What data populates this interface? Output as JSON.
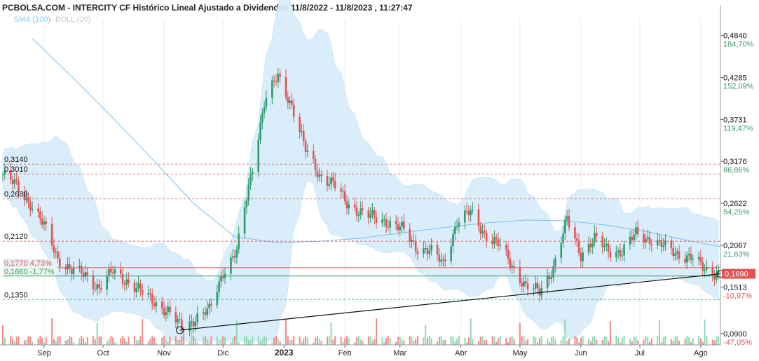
{
  "title": "PCBOLSA.COM - INTERCITY CF Histórico Lineal Ajustado a Dividendos 11/8/2022 - 11/8/2023 , 11:27:47",
  "legend": {
    "sma": "SMA (100)",
    "boll": "BOLL (20)"
  },
  "colors": {
    "up": "#2e9c6a",
    "down": "#e05454",
    "sma": "#7cc0ec",
    "band": "#d7ecfa",
    "vol_up": "#8fd9ae",
    "vol_down": "#f08a8a",
    "ref_red": "#e05454",
    "ref_green": "#3a9a6a"
  },
  "chart_data": {
    "type": "candlestick",
    "x_start": "2022-08-11",
    "x_end": "2023-08-11",
    "months": [
      {
        "label": "Sep",
        "date": "2022-09-01"
      },
      {
        "label": "Oct",
        "date": "2022-10-01"
      },
      {
        "label": "Nov",
        "date": "2022-11-01"
      },
      {
        "label": "Dic",
        "date": "2022-12-01"
      },
      {
        "label": "2023",
        "date": "2023-01-01"
      },
      {
        "label": "Feb",
        "date": "2023-02-01"
      },
      {
        "label": "Mar",
        "date": "2023-03-01"
      },
      {
        "label": "Abr",
        "date": "2023-04-01"
      },
      {
        "label": "May",
        "date": "2023-05-01"
      },
      {
        "label": "Jun",
        "date": "2023-06-01"
      },
      {
        "label": "Jul",
        "date": "2023-07-01"
      },
      {
        "label": "Ago",
        "date": "2023-08-01"
      }
    ],
    "ylim": [
      0.075,
      0.505
    ],
    "right_ticks": [
      {
        "price": "0,4840",
        "pct": "184,70%",
        "v": 0.484,
        "pos": true
      },
      {
        "price": "0,4285",
        "pct": "152,09%",
        "v": 0.4285,
        "pos": true
      },
      {
        "price": "0,3731",
        "pct": "119,47%",
        "v": 0.3731,
        "pos": true
      },
      {
        "price": "0,3176",
        "pct": "86,86%",
        "v": 0.3176,
        "pos": true
      },
      {
        "price": "0,2622",
        "pct": "54,25%",
        "v": 0.2622,
        "pos": true
      },
      {
        "price": "0,2067",
        "pct": "21,63%",
        "v": 0.2067,
        "pos": true
      },
      {
        "price": "0,1513",
        "pct": "-10,97%",
        "v": 0.1513,
        "pos": false
      },
      {
        "price": "0,0900",
        "pct": "-47,05%",
        "v": 0.09,
        "pos": false
      }
    ],
    "last_price": {
      "label": "0,1690",
      "v": 0.169
    },
    "ref_lines": [
      {
        "label": "0,3140",
        "v": 0.314,
        "style": "red-dash"
      },
      {
        "label": "0,3010",
        "v": 0.301,
        "style": "red-dash"
      },
      {
        "label": "0,2680",
        "v": 0.268,
        "style": "red-dash"
      },
      {
        "label": "0,2120",
        "v": 0.212,
        "style": "red-dash"
      },
      {
        "label": "0,1770  4,73%",
        "v": 0.177,
        "style": "red-solid"
      },
      {
        "label": "0,1660  -1,77%",
        "v": 0.166,
        "style": "green-solid"
      },
      {
        "label": "0,1350",
        "v": 0.135,
        "style": "green-dash"
      }
    ],
    "trendline": [
      {
        "date": "2022-11-09",
        "v": 0.0945
      },
      {
        "date": "2023-08-11",
        "v": 0.169
      }
    ],
    "series": [
      {
        "date": "2022-08-11",
        "close": 0.3
      },
      {
        "date": "2022-08-18",
        "close": 0.285
      },
      {
        "date": "2022-08-25",
        "close": 0.262
      },
      {
        "date": "2022-09-01",
        "close": 0.232
      },
      {
        "date": "2022-09-08",
        "close": 0.19
      },
      {
        "date": "2022-09-15",
        "close": 0.172
      },
      {
        "date": "2022-09-22",
        "close": 0.168
      },
      {
        "date": "2022-09-29",
        "close": 0.15
      },
      {
        "date": "2022-10-06",
        "close": 0.172
      },
      {
        "date": "2022-10-13",
        "close": 0.16
      },
      {
        "date": "2022-10-20",
        "close": 0.145
      },
      {
        "date": "2022-10-27",
        "close": 0.133
      },
      {
        "date": "2022-11-03",
        "close": 0.118
      },
      {
        "date": "2022-11-10",
        "close": 0.098
      },
      {
        "date": "2022-11-17",
        "close": 0.11
      },
      {
        "date": "2022-11-24",
        "close": 0.12
      },
      {
        "date": "2022-12-01",
        "close": 0.172
      },
      {
        "date": "2022-12-08",
        "close": 0.198
      },
      {
        "date": "2022-12-15",
        "close": 0.298
      },
      {
        "date": "2022-12-22",
        "close": 0.395
      },
      {
        "date": "2022-12-29",
        "close": 0.43
      },
      {
        "date": "2023-01-05",
        "close": 0.392
      },
      {
        "date": "2023-01-12",
        "close": 0.332
      },
      {
        "date": "2023-01-19",
        "close": 0.3
      },
      {
        "date": "2023-01-26",
        "close": 0.288
      },
      {
        "date": "2023-02-02",
        "close": 0.262
      },
      {
        "date": "2023-02-09",
        "close": 0.251
      },
      {
        "date": "2023-02-16",
        "close": 0.242
      },
      {
        "date": "2023-02-23",
        "close": 0.238
      },
      {
        "date": "2023-03-02",
        "close": 0.228
      },
      {
        "date": "2023-03-09",
        "close": 0.205
      },
      {
        "date": "2023-03-16",
        "close": 0.2
      },
      {
        "date": "2023-03-23",
        "close": 0.182
      },
      {
        "date": "2023-03-30",
        "close": 0.238
      },
      {
        "date": "2023-04-06",
        "close": 0.25
      },
      {
        "date": "2023-04-13",
        "close": 0.222
      },
      {
        "date": "2023-04-20",
        "close": 0.208
      },
      {
        "date": "2023-04-27",
        "close": 0.18
      },
      {
        "date": "2023-05-04",
        "close": 0.152
      },
      {
        "date": "2023-05-11",
        "close": 0.145
      },
      {
        "date": "2023-05-18",
        "close": 0.178
      },
      {
        "date": "2023-05-25",
        "close": 0.24
      },
      {
        "date": "2023-06-01",
        "close": 0.195
      },
      {
        "date": "2023-06-08",
        "close": 0.215
      },
      {
        "date": "2023-06-15",
        "close": 0.2
      },
      {
        "date": "2023-06-22",
        "close": 0.198
      },
      {
        "date": "2023-06-29",
        "close": 0.222
      },
      {
        "date": "2023-07-06",
        "close": 0.215
      },
      {
        "date": "2023-07-13",
        "close": 0.205
      },
      {
        "date": "2023-07-20",
        "close": 0.196
      },
      {
        "date": "2023-07-27",
        "close": 0.19
      },
      {
        "date": "2023-08-03",
        "close": 0.175
      },
      {
        "date": "2023-08-11",
        "close": 0.169
      }
    ],
    "sma": [
      {
        "date": "2022-08-26",
        "v": 0.48
      },
      {
        "date": "2022-09-15",
        "v": 0.43
      },
      {
        "date": "2022-10-06",
        "v": 0.375
      },
      {
        "date": "2022-10-27",
        "v": 0.318
      },
      {
        "date": "2022-11-16",
        "v": 0.262
      },
      {
        "date": "2022-12-07",
        "v": 0.218
      },
      {
        "date": "2022-12-29",
        "v": 0.21
      },
      {
        "date": "2023-01-19",
        "v": 0.212
      },
      {
        "date": "2023-02-09",
        "v": 0.216
      },
      {
        "date": "2023-03-02",
        "v": 0.223
      },
      {
        "date": "2023-03-23",
        "v": 0.23
      },
      {
        "date": "2023-04-13",
        "v": 0.236
      },
      {
        "date": "2023-05-04",
        "v": 0.24
      },
      {
        "date": "2023-05-25",
        "v": 0.239
      },
      {
        "date": "2023-06-15",
        "v": 0.233
      },
      {
        "date": "2023-07-06",
        "v": 0.224
      },
      {
        "date": "2023-07-27",
        "v": 0.212
      },
      {
        "date": "2023-08-11",
        "v": 0.205
      }
    ]
  }
}
